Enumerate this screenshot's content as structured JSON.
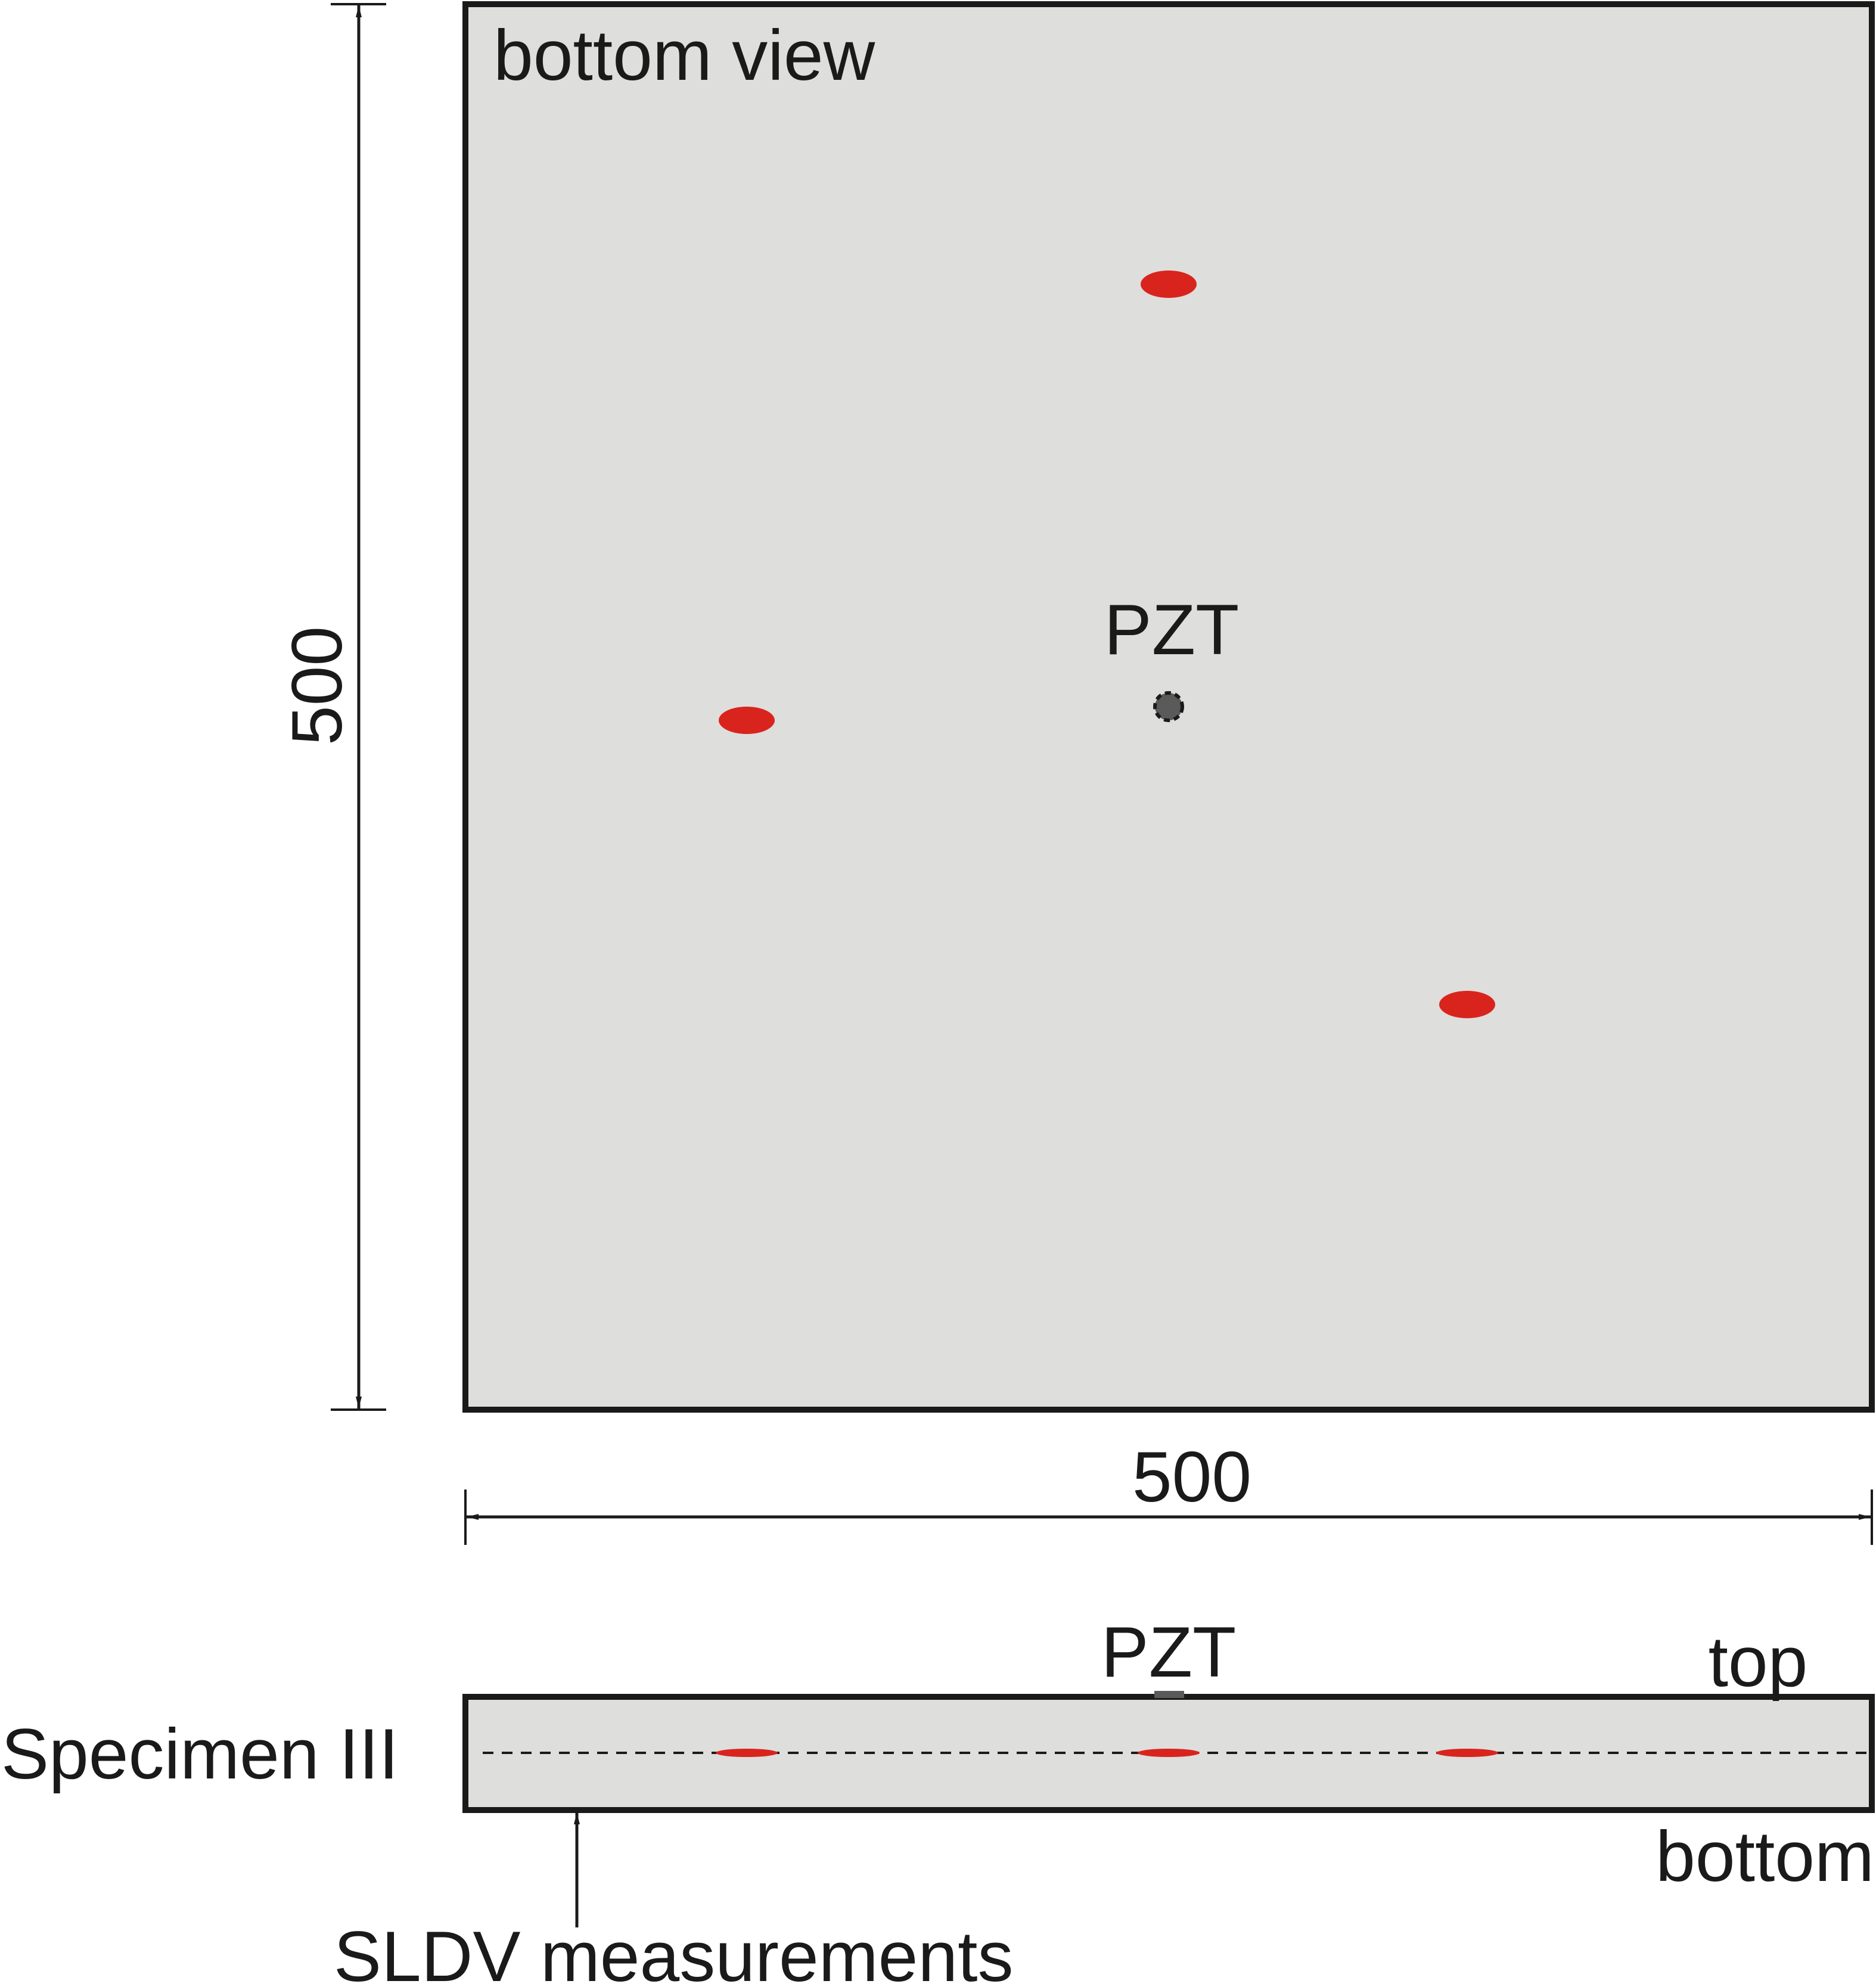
{
  "labels": {
    "bottom_view": "bottom view",
    "width_dimension": "500",
    "height_dimension": "500",
    "pzt_top_view": "PZT",
    "pzt_side_view": "PZT",
    "specimen": "Specimen III",
    "top": "top",
    "bottom": "bottom",
    "sldv": "SLDV measurements"
  },
  "colors": {
    "plate_fill": "#dededc",
    "outline": "#1a1a1a",
    "delamination": "#d9241e",
    "pzt": "#5a5a5a"
  },
  "icons": {
    "delamination_marker": "red-ellipse",
    "pzt_marker": "dashed-circle"
  }
}
